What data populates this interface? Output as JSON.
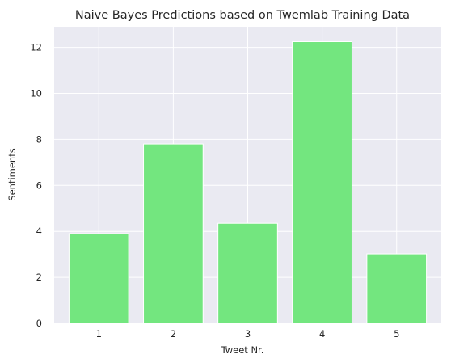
{
  "colors": {
    "plot_background": "#eaeaf2",
    "grid": "#ffffff",
    "bar": "#73e67f",
    "bar_edge": "#ffffff",
    "text": "#262626"
  },
  "chart_data": {
    "type": "bar",
    "title": "Naive Bayes Predictions based on Twemlab Training Data",
    "xlabel": "Tweet Nr.",
    "ylabel": "Sentiments",
    "categories": [
      "1",
      "2",
      "3",
      "4",
      "5"
    ],
    "values": [
      3.9,
      7.8,
      4.35,
      12.25,
      3.02
    ],
    "xlim": [
      0.4,
      5.6
    ],
    "ylim": [
      0,
      12.9
    ],
    "yticks": [
      0,
      2,
      4,
      6,
      8,
      10,
      12
    ],
    "grid": true,
    "legend": "none"
  }
}
